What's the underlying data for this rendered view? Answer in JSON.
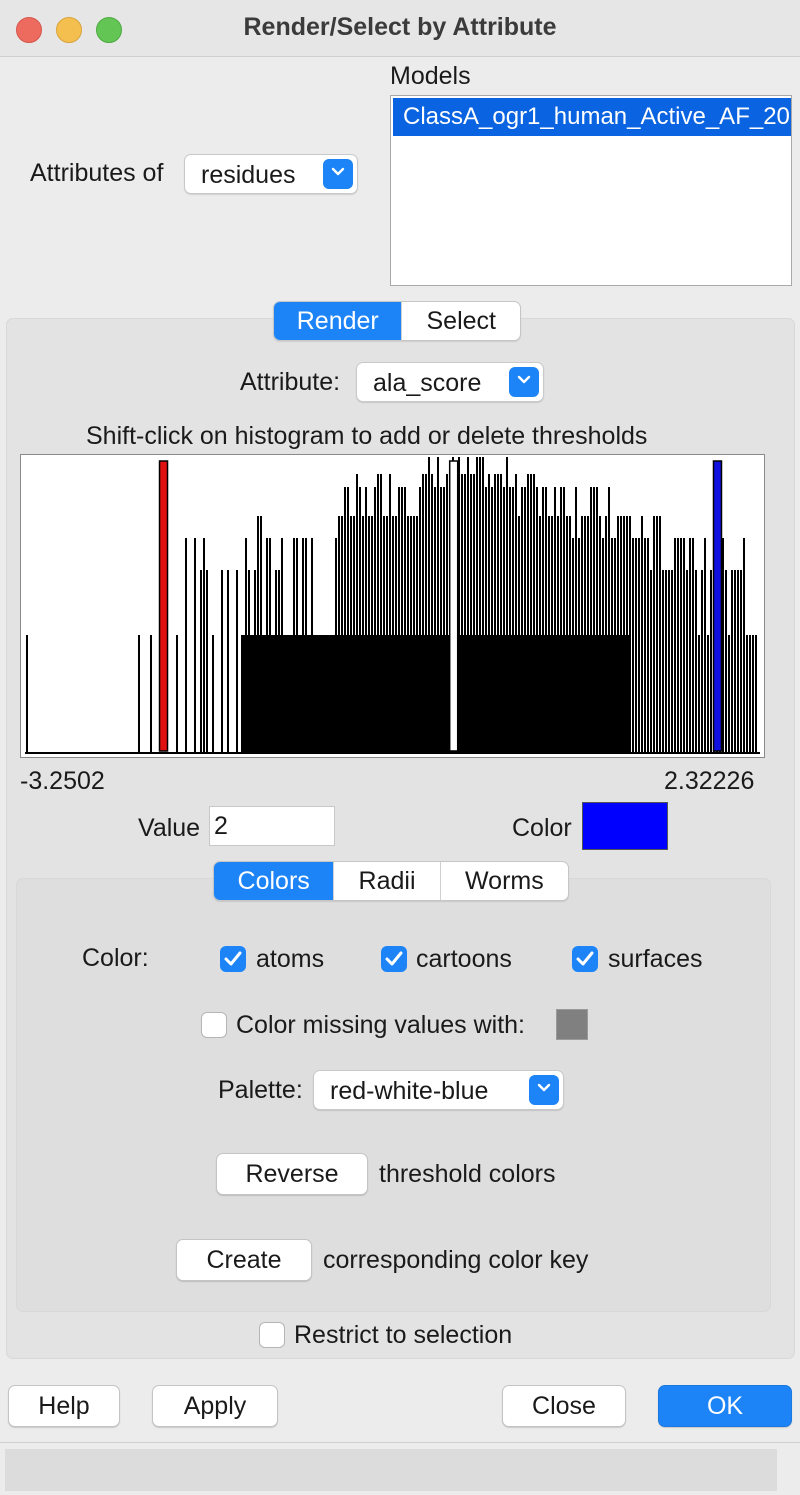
{
  "window": {
    "title": "Render/Select by Attribute"
  },
  "attributes_of": {
    "label": "Attributes of",
    "value": "residues"
  },
  "models": {
    "label": "Models",
    "items": [
      "ClassA_ogr1_human_Active_AF_20"
    ]
  },
  "mode_tabs": {
    "items": [
      {
        "label": "Render",
        "active": true
      },
      {
        "label": "Select",
        "active": false
      }
    ]
  },
  "attribute": {
    "label": "Attribute:",
    "value": "ala_score"
  },
  "histogram": {
    "hint": "Shift-click on histogram to add or delete thresholds",
    "min_label": "-3.2502",
    "max_label": "2.32226",
    "thresholds": [
      {
        "value": -2.2,
        "color": "#e01010"
      },
      {
        "value": 0.0,
        "color": "#ffffff"
      },
      {
        "value": 2.0,
        "color": "#1010e0"
      }
    ]
  },
  "value_field": {
    "label": "Value",
    "value": "2"
  },
  "color_field": {
    "label": "Color",
    "color": "#0000ff"
  },
  "sub_tabs": {
    "items": [
      {
        "label": "Colors",
        "active": true
      },
      {
        "label": "Radii",
        "active": false
      },
      {
        "label": "Worms",
        "active": false
      }
    ]
  },
  "color_targets": {
    "label": "Color:",
    "atoms": {
      "label": "atoms",
      "checked": true
    },
    "cartoons": {
      "label": "cartoons",
      "checked": true
    },
    "surfaces": {
      "label": "surfaces",
      "checked": true
    }
  },
  "missing": {
    "label": "Color missing values with:",
    "checked": false,
    "color": "#808080"
  },
  "palette": {
    "label": "Palette:",
    "value": "red-white-blue"
  },
  "reverse": {
    "button": "Reverse",
    "text": "threshold colors"
  },
  "create": {
    "button": "Create",
    "text": "corresponding color key"
  },
  "restrict": {
    "label": "Restrict to selection",
    "checked": false
  },
  "buttons": {
    "help": "Help",
    "apply": "Apply",
    "close": "Close",
    "ok": "OK"
  }
}
